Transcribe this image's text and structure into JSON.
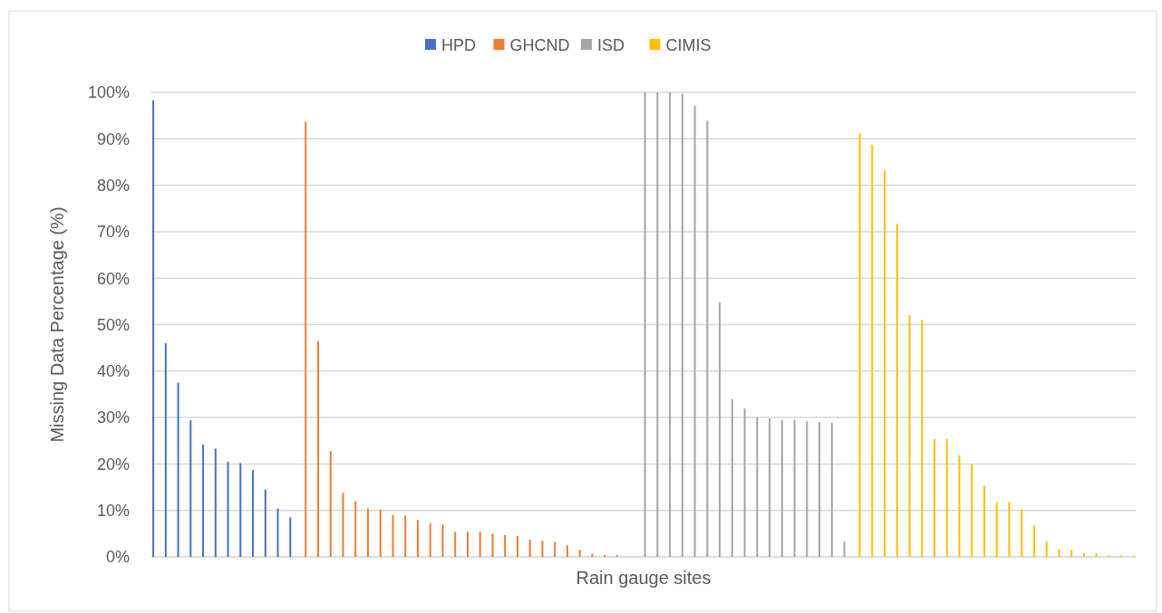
{
  "chart_data": {
    "type": "bar",
    "xlabel": "Rain gauge sites",
    "ylabel": "Missing Data Percentage (%)",
    "categories": [
      null,
      null,
      null,
      null,
      null,
      null,
      null,
      null,
      null,
      null,
      null,
      null,
      null,
      null,
      null,
      null,
      null,
      null,
      null,
      null,
      null,
      null,
      null,
      null,
      null,
      null,
      null,
      null,
      null,
      null,
      null,
      null,
      null,
      null,
      null,
      null,
      null,
      null,
      null,
      null,
      null,
      null,
      null,
      null,
      null,
      null,
      null,
      null,
      null,
      null,
      null,
      null,
      null,
      null,
      null,
      null,
      null,
      null,
      null,
      null,
      null,
      null,
      null,
      null,
      null,
      null,
      null,
      null,
      null,
      null,
      null,
      null,
      null,
      null,
      null,
      null,
      null,
      null,
      null
    ],
    "series": [
      {
        "name": "HPD",
        "color": "#4472c4",
        "values": [
          98.3,
          46.0,
          37.5,
          29.4,
          24.2,
          23.3,
          20.5,
          20.2,
          18.7,
          14.5,
          10.4,
          8.5,
          null,
          null,
          null,
          null,
          null,
          null,
          null,
          null,
          null,
          null,
          null,
          null,
          null,
          null,
          null,
          null,
          null,
          null,
          null,
          null,
          null,
          null,
          null,
          null,
          null,
          null,
          null,
          null,
          null,
          null,
          null,
          null,
          null,
          null,
          null,
          null,
          null,
          null,
          null,
          null,
          null,
          null,
          null,
          null,
          null,
          null,
          null,
          null,
          null,
          null,
          null,
          null,
          null,
          null,
          null,
          null,
          null,
          null,
          null,
          null,
          null,
          null,
          null,
          null,
          null,
          null,
          null
        ]
      },
      {
        "name": "GHCND",
        "color": "#ed7d31",
        "values": [
          null,
          null,
          null,
          null,
          null,
          null,
          null,
          null,
          null,
          null,
          null,
          null,
          93.7,
          46.4,
          22.8,
          13.8,
          12.0,
          10.4,
          10.2,
          9.0,
          8.9,
          7.9,
          7.2,
          7.0,
          5.4,
          5.4,
          5.4,
          5.0,
          4.7,
          4.5,
          3.7,
          3.5,
          3.2,
          2.5,
          1.5,
          0.7,
          0.4,
          0.4,
          null,
          null,
          null,
          null,
          null,
          null,
          null,
          null,
          null,
          null,
          null,
          null,
          null,
          null,
          null,
          null,
          null,
          null,
          null,
          null,
          null,
          null,
          null,
          null,
          null,
          null,
          null,
          null,
          null,
          null,
          null,
          null,
          null,
          null,
          null,
          null,
          null,
          null,
          null,
          null,
          null
        ]
      },
      {
        "name": "ISD",
        "color": "#a5a5a5",
        "values": [
          null,
          null,
          null,
          null,
          null,
          null,
          null,
          null,
          null,
          null,
          null,
          null,
          null,
          null,
          null,
          null,
          null,
          null,
          null,
          null,
          null,
          null,
          null,
          null,
          null,
          null,
          null,
          null,
          null,
          null,
          null,
          null,
          null,
          null,
          null,
          null,
          null,
          null,
          null,
          100,
          100,
          100,
          99.7,
          97.1,
          93.9,
          54.8,
          34.0,
          32.0,
          30.0,
          29.8,
          29.5,
          29.5,
          29.2,
          29.0,
          28.8,
          3.3,
          null,
          null,
          null,
          null,
          null,
          null,
          null,
          null,
          null,
          null,
          null,
          null,
          null,
          null,
          null,
          null,
          null,
          null,
          null,
          null,
          null,
          null,
          null
        ]
      },
      {
        "name": "CIMIS",
        "color": "#ffc000",
        "values": [
          null,
          null,
          null,
          null,
          null,
          null,
          null,
          null,
          null,
          null,
          null,
          null,
          null,
          null,
          null,
          null,
          null,
          null,
          null,
          null,
          null,
          null,
          null,
          null,
          null,
          null,
          null,
          null,
          null,
          null,
          null,
          null,
          null,
          null,
          null,
          null,
          null,
          null,
          null,
          null,
          null,
          null,
          null,
          null,
          null,
          null,
          null,
          null,
          null,
          null,
          null,
          null,
          null,
          null,
          null,
          null,
          91.2,
          88.7,
          83.2,
          71.7,
          52.0,
          51.0,
          25.4,
          25.4,
          21.9,
          19.9,
          15.3,
          11.8,
          11.8,
          10.2,
          6.8,
          3.3,
          1.7,
          1.5,
          0.8,
          0.8,
          0.3,
          0.3,
          0.2
        ]
      }
    ],
    "ylim": [
      0,
      100
    ],
    "yticks": [
      {
        "value": 0,
        "label": "0%"
      },
      {
        "value": 10,
        "label": "10%"
      },
      {
        "value": 20,
        "label": "20%"
      },
      {
        "value": 30,
        "label": "30%"
      },
      {
        "value": 40,
        "label": "40%"
      },
      {
        "value": 50,
        "label": "50%"
      },
      {
        "value": 60,
        "label": "60%"
      },
      {
        "value": 70,
        "label": "70%"
      },
      {
        "value": 80,
        "label": "80%"
      },
      {
        "value": 90,
        "label": "90%"
      },
      {
        "value": 100,
        "label": "100%"
      }
    ],
    "grid": "y",
    "legend": "top"
  }
}
